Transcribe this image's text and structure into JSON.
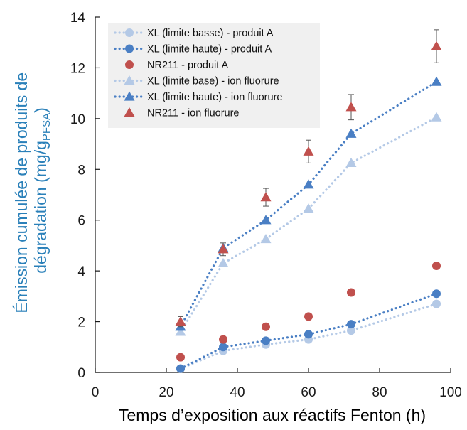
{
  "chart_data": {
    "type": "scatter",
    "xlabel": "Temps d’exposition aux réactifs Fenton (h)",
    "ylabel_lines": [
      "Émission cumulée de produits de",
      "dégradation (mg/g",
      "PFSA",
      ")"
    ],
    "xlim": [
      0,
      100
    ],
    "ylim": [
      0,
      14
    ],
    "x_ticks": [
      0,
      20,
      40,
      60,
      80,
      100
    ],
    "y_ticks": [
      0,
      2,
      4,
      6,
      8,
      10,
      12,
      14
    ],
    "grid": false,
    "legend_position": "top-left",
    "colors": {
      "light_blue": "#b4c9e6",
      "blue": "#4a7fc4",
      "red": "#c0504d",
      "axis": "#1a1a1a",
      "ylabel": "#2a80b9",
      "xlabel": "#000000",
      "legend_bg": "#f0f0f0"
    },
    "series": [
      {
        "name": "XL (limite basse) - produit A",
        "marker": "circle",
        "line": "dotted",
        "color": "light_blue",
        "x": [
          24,
          36,
          48,
          60,
          72,
          96
        ],
        "y": [
          0.15,
          0.85,
          1.1,
          1.3,
          1.65,
          2.7
        ]
      },
      {
        "name": "XL (limite haute) - produit A",
        "marker": "circle",
        "line": "dotted",
        "color": "blue",
        "x": [
          24,
          36,
          48,
          60,
          72,
          96
        ],
        "y": [
          0.15,
          1.0,
          1.25,
          1.5,
          1.9,
          3.1
        ]
      },
      {
        "name": "NR211 - produit A",
        "marker": "circle",
        "line": "none",
        "color": "red",
        "x": [
          24,
          36,
          48,
          60,
          72,
          96
        ],
        "y": [
          0.6,
          1.3,
          1.8,
          2.2,
          3.15,
          4.2
        ]
      },
      {
        "name": "XL (limite base) - ion fluorure",
        "marker": "triangle",
        "line": "dotted",
        "color": "light_blue",
        "x": [
          24,
          36,
          48,
          60,
          72,
          96
        ],
        "y": [
          1.6,
          4.3,
          5.25,
          6.45,
          8.25,
          10.05
        ]
      },
      {
        "name": "XL (limite haute) - ion fluorure",
        "marker": "triangle",
        "line": "dotted",
        "color": "blue",
        "x": [
          24,
          36,
          48,
          60,
          72,
          96
        ],
        "y": [
          1.8,
          4.9,
          6.0,
          7.4,
          9.4,
          11.45
        ]
      },
      {
        "name": "NR211 - ion fluorure",
        "marker": "triangle",
        "line": "none",
        "color": "red",
        "x": [
          24,
          36,
          48,
          60,
          72,
          96
        ],
        "y": [
          2.0,
          4.85,
          6.9,
          8.7,
          10.45,
          12.85
        ],
        "error": [
          0.2,
          0.25,
          0.35,
          0.45,
          0.5,
          0.65
        ]
      }
    ]
  }
}
